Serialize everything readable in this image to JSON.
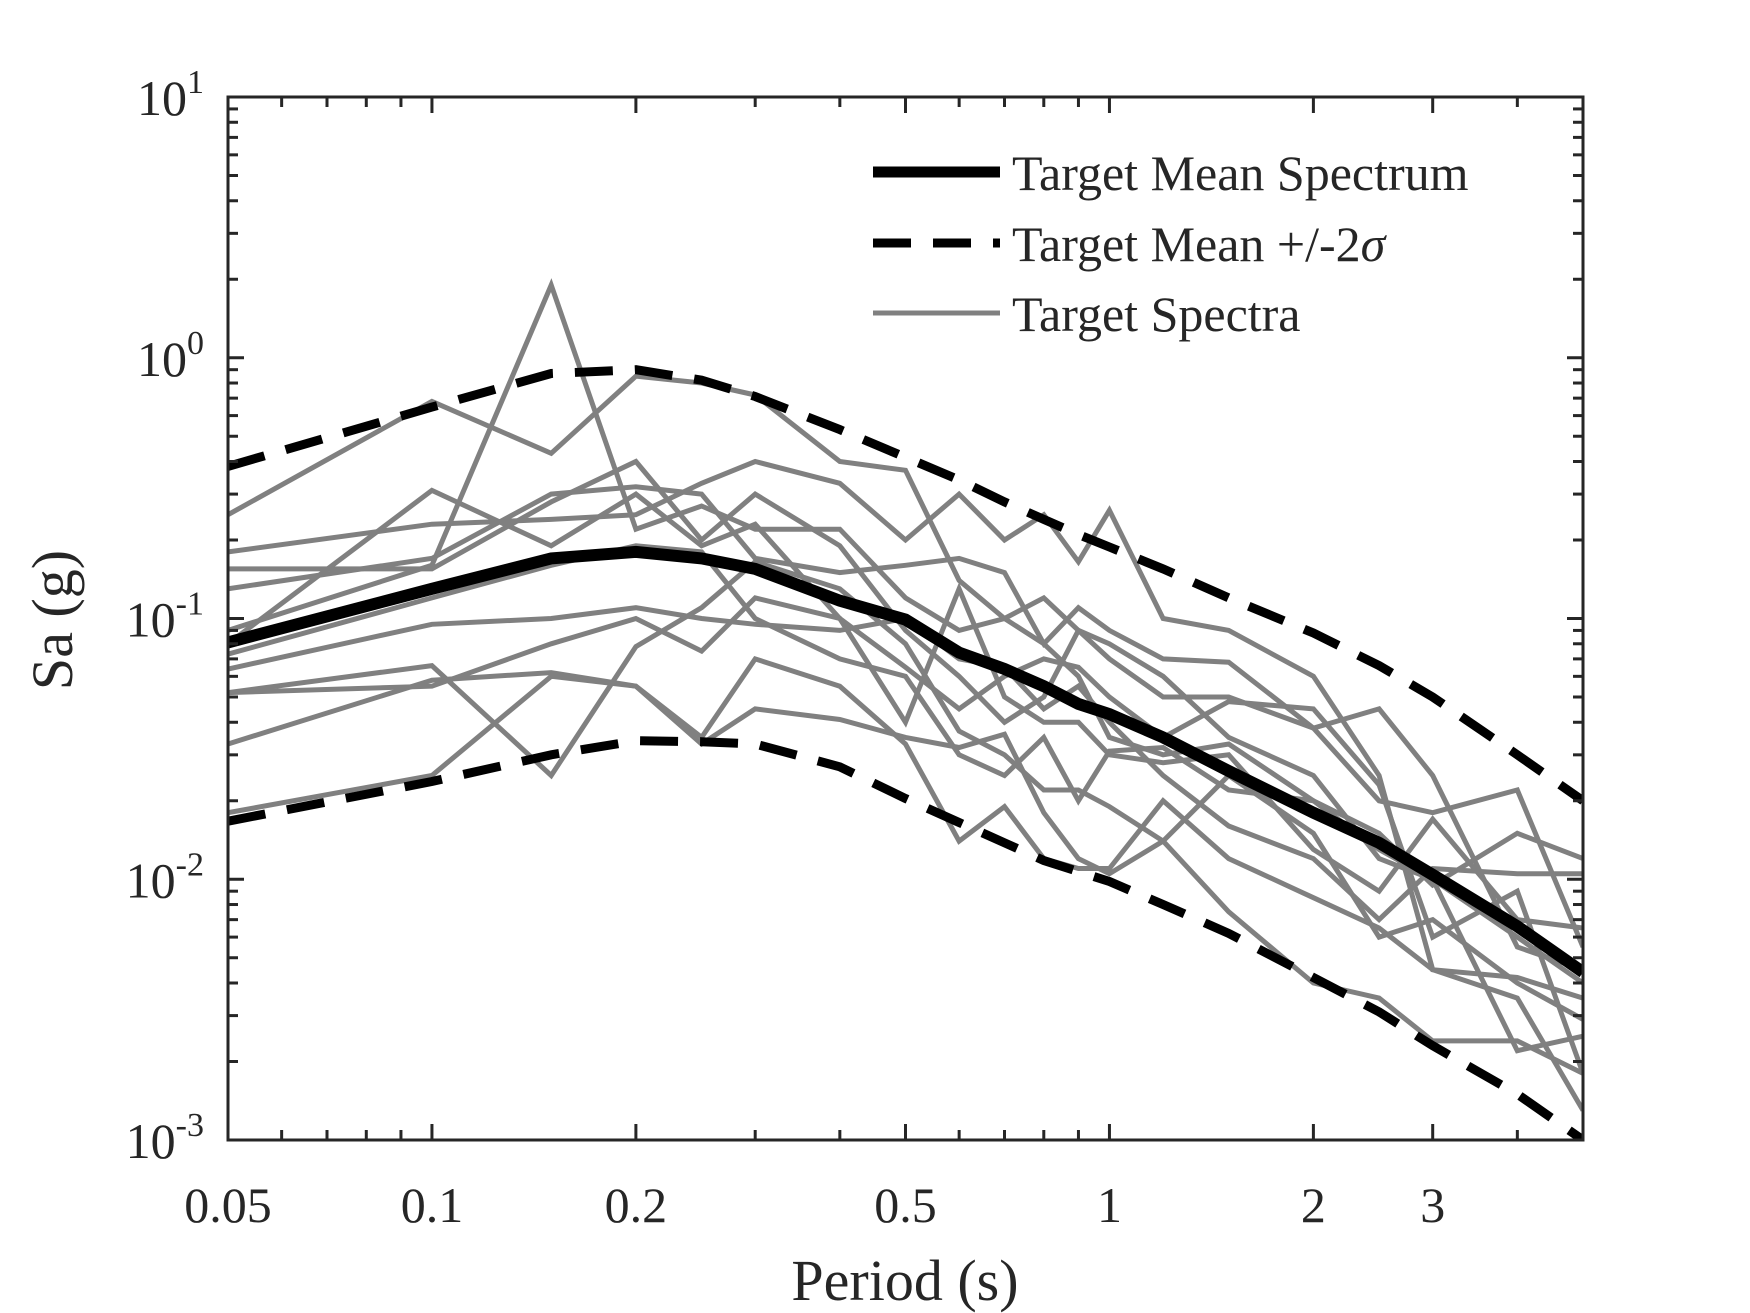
{
  "chart_data": {
    "type": "line",
    "xlabel": "Period (s)",
    "ylabel": "Sa (g)",
    "xscale": "log",
    "yscale": "log",
    "xlim": [
      0.05,
      5
    ],
    "ylim": [
      0.001,
      10
    ],
    "xticks": [
      0.05,
      0.1,
      0.2,
      0.5,
      1,
      2,
      3
    ],
    "xtick_labels": [
      "0.05",
      "0.1",
      "0.2",
      "0.5",
      "1",
      "2",
      "3"
    ],
    "yticks": [
      0.001,
      0.01,
      0.1,
      1,
      10
    ],
    "ytick_labels": [
      {
        "base": "10",
        "exp": "-3"
      },
      {
        "base": "10",
        "exp": "-2"
      },
      {
        "base": "10",
        "exp": "-1"
      },
      {
        "base": "10",
        "exp": "0"
      },
      {
        "base": "10",
        "exp": "1"
      }
    ],
    "grid": false,
    "legend_position": "top-right",
    "legend": [
      {
        "label": "Target Mean Spectrum",
        "style": "thick-solid",
        "color": "#000000"
      },
      {
        "label": "Target Mean +/-2",
        "sigma": "σ",
        "style": "dashed",
        "color": "#000000"
      },
      {
        "label": "Target Spectra",
        "style": "solid",
        "color": "#808080"
      }
    ],
    "periods": [
      0.05,
      0.1,
      0.15,
      0.2,
      0.25,
      0.3,
      0.4,
      0.5,
      0.6,
      0.7,
      0.8,
      0.9,
      1,
      1.2,
      1.5,
      2,
      2.5,
      3,
      4,
      5
    ],
    "mean": [
      0.081,
      0.13,
      0.17,
      0.18,
      0.17,
      0.155,
      0.117,
      0.099,
      0.074,
      0.064,
      0.055,
      0.047,
      0.043,
      0.035,
      0.026,
      0.018,
      0.0138,
      0.0104,
      0.0066,
      0.0044
    ],
    "upper": [
      0.383,
      0.647,
      0.87,
      0.9,
      0.82,
      0.71,
      0.53,
      0.415,
      0.34,
      0.28,
      0.24,
      0.21,
      0.188,
      0.155,
      0.12,
      0.088,
      0.066,
      0.05,
      0.03,
      0.02
    ],
    "lower": [
      0.0167,
      0.0237,
      0.03,
      0.034,
      0.0337,
      0.033,
      0.027,
      0.0204,
      0.0165,
      0.0138,
      0.0118,
      0.0107,
      0.0098,
      0.008,
      0.0062,
      0.0042,
      0.0031,
      0.0023,
      0.0015,
      0.001
    ],
    "spectra": [
      [
        0.25,
        0.68,
        0.43,
        0.85,
        0.8,
        0.72,
        0.4,
        0.37,
        0.14,
        0.1,
        0.08,
        0.06,
        0.035,
        0.03,
        0.033,
        0.02,
        0.013,
        0.01,
        0.006,
        0.004
      ],
      [
        0.09,
        0.16,
        1.9,
        0.22,
        0.27,
        0.22,
        0.22,
        0.12,
        0.09,
        0.1,
        0.12,
        0.09,
        0.07,
        0.05,
        0.05,
        0.038,
        0.045,
        0.025,
        0.0055,
        0.0045
      ],
      [
        0.18,
        0.23,
        0.24,
        0.25,
        0.33,
        0.4,
        0.33,
        0.2,
        0.3,
        0.2,
        0.25,
        0.165,
        0.26,
        0.1,
        0.09,
        0.06,
        0.025,
        0.0045,
        0.0042,
        0.0035
      ],
      [
        0.155,
        0.155,
        0.28,
        0.4,
        0.2,
        0.3,
        0.19,
        0.09,
        0.06,
        0.04,
        0.05,
        0.09,
        0.08,
        0.06,
        0.035,
        0.025,
        0.012,
        0.01,
        0.0022,
        0.0025
      ],
      [
        0.13,
        0.17,
        0.3,
        0.32,
        0.3,
        0.17,
        0.15,
        0.16,
        0.17,
        0.15,
        0.08,
        0.11,
        0.09,
        0.07,
        0.068,
        0.038,
        0.02,
        0.018,
        0.022,
        0.0055
      ],
      [
        0.08,
        0.31,
        0.19,
        0.3,
        0.19,
        0.23,
        0.1,
        0.065,
        0.045,
        0.06,
        0.07,
        0.065,
        0.05,
        0.035,
        0.048,
        0.045,
        0.023,
        0.006,
        0.009,
        0.0018
      ],
      [
        0.073,
        0.12,
        0.16,
        0.19,
        0.18,
        0.1,
        0.07,
        0.06,
        0.03,
        0.025,
        0.035,
        0.02,
        0.031,
        0.032,
        0.022,
        0.02,
        0.015,
        0.0095,
        0.015,
        0.012
      ],
      [
        0.064,
        0.095,
        0.1,
        0.11,
        0.1,
        0.095,
        0.09,
        0.1,
        0.07,
        0.065,
        0.045,
        0.055,
        0.04,
        0.025,
        0.016,
        0.012,
        0.007,
        0.011,
        0.0105,
        0.0105
      ],
      [
        0.052,
        0.055,
        0.08,
        0.1,
        0.075,
        0.12,
        0.1,
        0.04,
        0.13,
        0.05,
        0.04,
        0.04,
        0.03,
        0.028,
        0.03,
        0.013,
        0.009,
        0.017,
        0.007,
        0.0065
      ],
      [
        0.052,
        0.066,
        0.025,
        0.078,
        0.11,
        0.165,
        0.13,
        0.08,
        0.037,
        0.03,
        0.022,
        0.022,
        0.019,
        0.014,
        0.025,
        0.015,
        0.006,
        0.007,
        0.004,
        0.0029
      ],
      [
        0.033,
        0.058,
        0.062,
        0.055,
        0.033,
        0.045,
        0.041,
        0.035,
        0.032,
        0.036,
        0.018,
        0.012,
        0.0105,
        0.014,
        0.0075,
        0.004,
        0.0035,
        0.0024,
        0.0024,
        0.0018
      ],
      [
        0.018,
        0.025,
        0.06,
        0.055,
        0.035,
        0.07,
        0.055,
        0.033,
        0.014,
        0.019,
        0.012,
        0.011,
        0.011,
        0.02,
        0.012,
        0.0085,
        0.0065,
        0.0045,
        0.0035,
        0.0013
      ]
    ],
    "colors": {
      "mean": "#000000",
      "bounds": "#000000",
      "spectra": "#808080",
      "axis": "#262626"
    }
  }
}
